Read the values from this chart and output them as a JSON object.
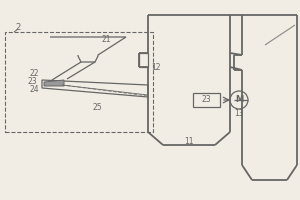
{
  "bg_color": "#f2ede4",
  "lc": "#666666",
  "lw": 0.9,
  "lw_thick": 1.3
}
